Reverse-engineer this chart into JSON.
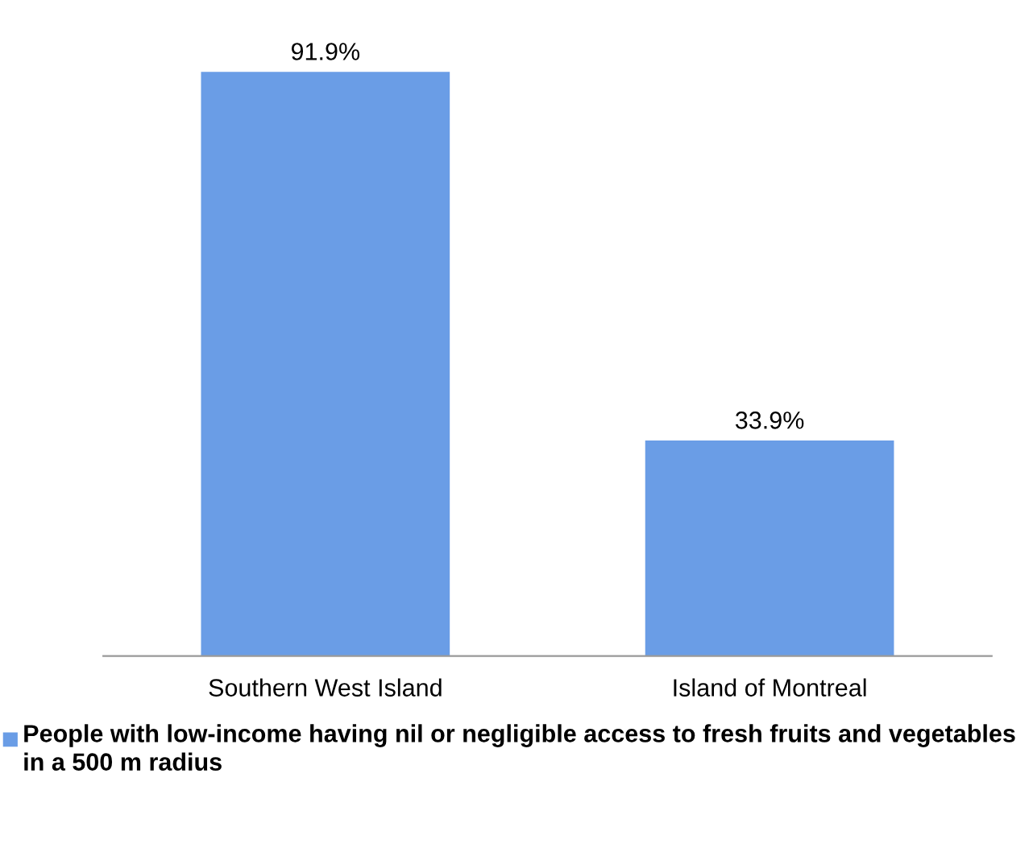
{
  "chart_data": {
    "type": "bar",
    "categories": [
      "Southern West Island",
      "Island of Montreal"
    ],
    "series": [
      {
        "name": "People with low-income having nil or negligible access to fresh fruits and vegetables in a 500 m radius",
        "color": "#6a9de6",
        "values": [
          91.9,
          33.9
        ],
        "value_labels": [
          "91.9%",
          "33.9%"
        ]
      }
    ],
    "legend": "bottom"
  }
}
